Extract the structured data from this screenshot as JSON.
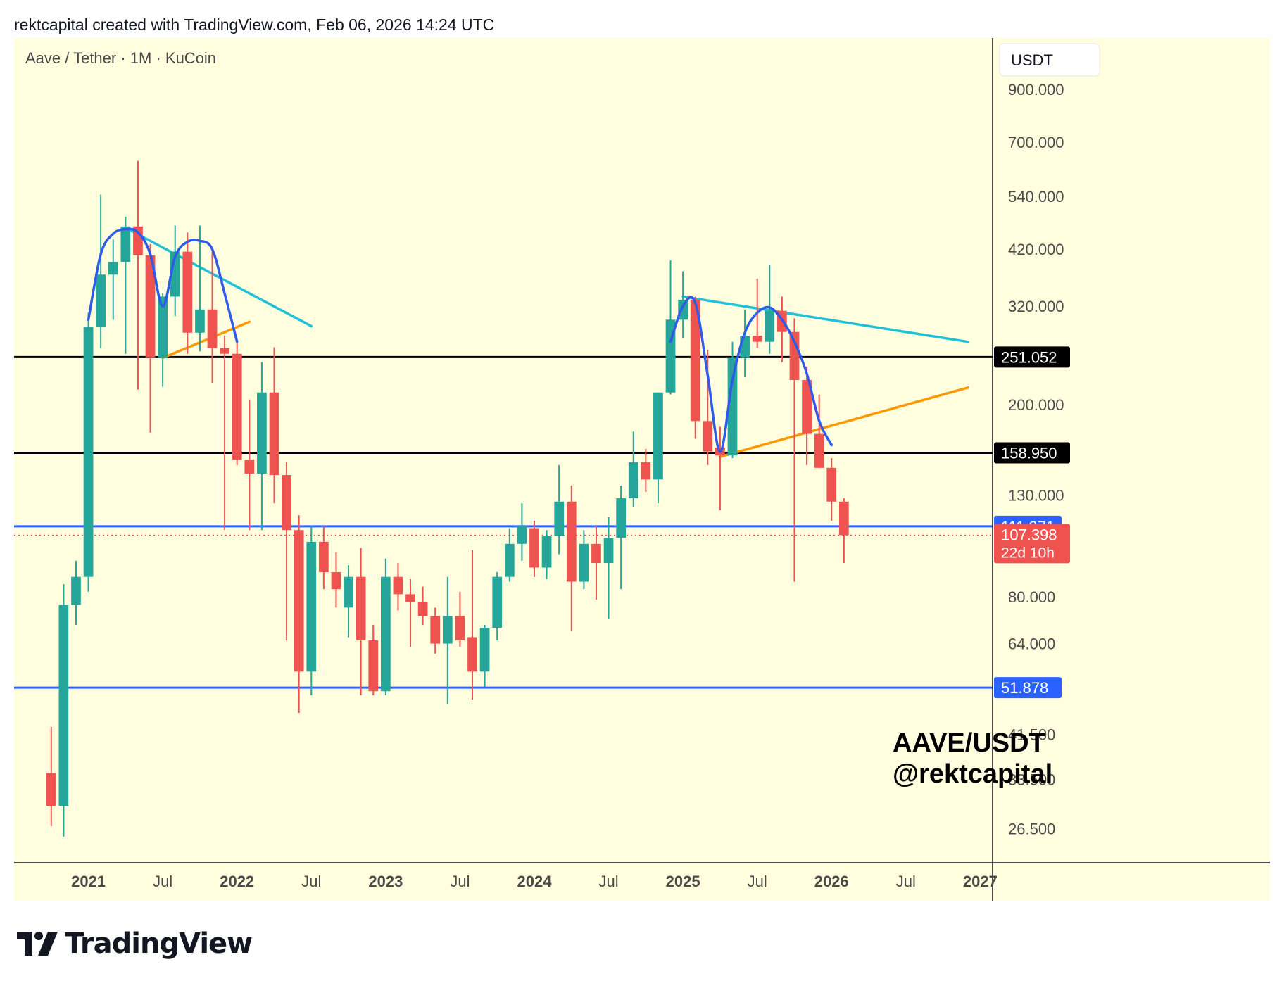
{
  "header": {
    "caption": "rektcapital created with TradingView.com, Feb 06, 2026 14:24 UTC"
  },
  "footer": {
    "brand": "TradingView"
  },
  "colors": {
    "background": "#ffffe0",
    "up": "#26a69a",
    "down": "#ef5350",
    "support_line": "#2962ff",
    "horizontal_level": "#000000",
    "cyan_trendline": "#22c1d8",
    "orange_trendline": "#ff9800",
    "pattern_curve": "#2e5be8"
  },
  "chart_data": {
    "type": "candlestick",
    "symbol_label": "Aave / Tether · 1M · KuCoin",
    "currency": "USDT",
    "y_scale": "log",
    "y_range": [
      22.5,
      1150
    ],
    "y_ticks": [
      "900.000",
      "700.000",
      "540.000",
      "420.000",
      "320.000",
      "200.000",
      "130.000",
      "80.000",
      "64.000",
      "41.500",
      "33.500",
      "26.500"
    ],
    "x_ticks": [
      "2021",
      "Jul",
      "2022",
      "Jul",
      "2023",
      "Jul",
      "2024",
      "Jul",
      "2025",
      "Jul",
      "2026",
      "Jul",
      "2027"
    ],
    "x_tick_dates": [
      "2021-01",
      "2021-07",
      "2022-01",
      "2022-07",
      "2023-01",
      "2023-07",
      "2024-01",
      "2024-07",
      "2025-01",
      "2025-07",
      "2026-01",
      "2026-07",
      "2027-01"
    ],
    "x_range": [
      "2020-07",
      "2027-02"
    ],
    "candles": [
      {
        "date": "2020-10",
        "o": 34.5,
        "h": 43,
        "l": 26.8,
        "c": 29.5
      },
      {
        "date": "2020-11",
        "o": 29.5,
        "h": 85,
        "l": 25.5,
        "c": 77
      },
      {
        "date": "2020-12",
        "o": 77,
        "h": 95,
        "l": 70,
        "c": 88
      },
      {
        "date": "2021-01",
        "o": 88,
        "h": 310,
        "l": 82,
        "c": 290
      },
      {
        "date": "2021-02",
        "o": 290,
        "h": 545,
        "l": 262,
        "c": 372
      },
      {
        "date": "2021-03",
        "o": 372,
        "h": 440,
        "l": 300,
        "c": 395
      },
      {
        "date": "2021-04",
        "o": 395,
        "h": 490,
        "l": 255,
        "c": 468
      },
      {
        "date": "2021-05",
        "o": 468,
        "h": 640,
        "l": 215,
        "c": 408
      },
      {
        "date": "2021-06",
        "o": 408,
        "h": 430,
        "l": 175,
        "c": 250
      },
      {
        "date": "2021-07",
        "o": 250,
        "h": 340,
        "l": 218,
        "c": 335
      },
      {
        "date": "2021-08",
        "o": 335,
        "h": 470,
        "l": 305,
        "c": 415
      },
      {
        "date": "2021-09",
        "o": 415,
        "h": 455,
        "l": 255,
        "c": 282
      },
      {
        "date": "2021-10",
        "o": 282,
        "h": 470,
        "l": 258,
        "c": 315
      },
      {
        "date": "2021-11",
        "o": 315,
        "h": 415,
        "l": 222,
        "c": 262
      },
      {
        "date": "2021-12",
        "o": 262,
        "h": 278,
        "l": 110,
        "c": 255
      },
      {
        "date": "2022-01",
        "o": 255,
        "h": 270,
        "l": 150,
        "c": 154
      },
      {
        "date": "2022-02",
        "o": 154,
        "h": 205,
        "l": 110,
        "c": 144
      },
      {
        "date": "2022-03",
        "o": 144,
        "h": 245,
        "l": 110,
        "c": 212
      },
      {
        "date": "2022-04",
        "o": 212,
        "h": 263,
        "l": 125,
        "c": 143
      },
      {
        "date": "2022-05",
        "o": 143,
        "h": 152,
        "l": 65,
        "c": 110
      },
      {
        "date": "2022-06",
        "o": 110,
        "h": 118,
        "l": 46,
        "c": 56
      },
      {
        "date": "2022-07",
        "o": 56,
        "h": 112,
        "l": 50,
        "c": 104
      },
      {
        "date": "2022-08",
        "o": 104,
        "h": 112,
        "l": 83,
        "c": 90
      },
      {
        "date": "2022-09",
        "o": 90,
        "h": 99,
        "l": 76,
        "c": 83
      },
      {
        "date": "2022-10",
        "o": 76,
        "h": 93,
        "l": 66,
        "c": 88
      },
      {
        "date": "2022-11",
        "o": 88,
        "h": 101,
        "l": 50,
        "c": 65
      },
      {
        "date": "2022-12",
        "o": 65,
        "h": 70,
        "l": 50,
        "c": 51
      },
      {
        "date": "2023-01",
        "o": 51,
        "h": 96,
        "l": 50,
        "c": 88
      },
      {
        "date": "2023-02",
        "o": 88,
        "h": 94,
        "l": 75,
        "c": 81
      },
      {
        "date": "2023-03",
        "o": 81,
        "h": 87,
        "l": 63,
        "c": 78
      },
      {
        "date": "2023-04",
        "o": 78,
        "h": 84,
        "l": 70,
        "c": 73
      },
      {
        "date": "2023-05",
        "o": 73,
        "h": 76,
        "l": 61,
        "c": 64
      },
      {
        "date": "2023-06",
        "o": 64,
        "h": 88,
        "l": 48,
        "c": 73
      },
      {
        "date": "2023-07",
        "o": 73,
        "h": 82,
        "l": 63,
        "c": 65
      },
      {
        "date": "2023-08",
        "o": 66,
        "h": 100,
        "l": 49,
        "c": 56
      },
      {
        "date": "2023-09",
        "o": 56,
        "h": 70,
        "l": 52,
        "c": 69
      },
      {
        "date": "2023-10",
        "o": 69,
        "h": 90,
        "l": 65,
        "c": 88
      },
      {
        "date": "2023-11",
        "o": 88,
        "h": 111,
        "l": 86,
        "c": 103
      },
      {
        "date": "2023-12",
        "o": 103,
        "h": 125,
        "l": 95,
        "c": 112
      },
      {
        "date": "2024-01",
        "o": 111,
        "h": 115,
        "l": 88,
        "c": 92
      },
      {
        "date": "2024-02",
        "o": 92,
        "h": 110,
        "l": 87,
        "c": 107
      },
      {
        "date": "2024-03",
        "o": 107,
        "h": 150,
        "l": 98,
        "c": 126
      },
      {
        "date": "2024-04",
        "o": 126,
        "h": 136,
        "l": 68,
        "c": 86
      },
      {
        "date": "2024-05",
        "o": 86,
        "h": 110,
        "l": 83,
        "c": 103
      },
      {
        "date": "2024-06",
        "o": 103,
        "h": 112,
        "l": 79,
        "c": 94
      },
      {
        "date": "2024-07",
        "o": 94,
        "h": 117,
        "l": 72,
        "c": 106
      },
      {
        "date": "2024-08",
        "o": 106,
        "h": 136,
        "l": 83,
        "c": 128
      },
      {
        "date": "2024-09",
        "o": 128,
        "h": 176,
        "l": 123,
        "c": 152
      },
      {
        "date": "2024-10",
        "o": 152,
        "h": 162,
        "l": 132,
        "c": 140
      },
      {
        "date": "2024-11",
        "o": 140,
        "h": 212,
        "l": 125,
        "c": 212
      },
      {
        "date": "2024-12",
        "o": 212,
        "h": 398,
        "l": 210,
        "c": 300
      },
      {
        "date": "2025-01",
        "o": 300,
        "h": 378,
        "l": 275,
        "c": 330
      },
      {
        "date": "2025-02",
        "o": 330,
        "h": 335,
        "l": 170,
        "c": 185
      },
      {
        "date": "2025-03",
        "o": 185,
        "h": 260,
        "l": 150,
        "c": 160
      },
      {
        "date": "2025-04",
        "o": 163,
        "h": 180,
        "l": 121,
        "c": 157
      },
      {
        "date": "2025-05",
        "o": 157,
        "h": 270,
        "l": 155,
        "c": 250
      },
      {
        "date": "2025-06",
        "o": 250,
        "h": 315,
        "l": 228,
        "c": 278
      },
      {
        "date": "2025-07",
        "o": 278,
        "h": 365,
        "l": 262,
        "c": 270
      },
      {
        "date": "2025-08",
        "o": 270,
        "h": 390,
        "l": 255,
        "c": 313
      },
      {
        "date": "2025-09",
        "o": 313,
        "h": 335,
        "l": 245,
        "c": 283
      },
      {
        "date": "2025-10",
        "o": 283,
        "h": 302,
        "l": 86,
        "c": 225
      },
      {
        "date": "2025-11",
        "o": 225,
        "h": 240,
        "l": 150,
        "c": 174
      },
      {
        "date": "2025-12",
        "o": 174,
        "h": 210,
        "l": 148,
        "c": 148
      },
      {
        "date": "2026-01",
        "o": 148,
        "h": 155,
        "l": 115,
        "c": 126
      },
      {
        "date": "2026-02",
        "o": 126,
        "h": 128,
        "l": 94,
        "c": 107.398
      }
    ],
    "horizontal_levels": [
      {
        "value": 251.052,
        "label": "251.052",
        "style": "black"
      },
      {
        "value": 158.95,
        "label": "158.950",
        "style": "black"
      },
      {
        "value": 111.971,
        "label": "111.971",
        "style": "blue"
      },
      {
        "value": 51.878,
        "label": "51.878",
        "style": "blue"
      }
    ],
    "current_price": {
      "value": 107.398,
      "label": "107.398",
      "countdown": "22d 10h"
    },
    "trendlines": [
      {
        "style": "cyan",
        "from": {
          "date": "2021-04",
          "value": 465
        },
        "to": {
          "date": "2022-07",
          "value": 291
        }
      },
      {
        "style": "orange",
        "from": {
          "date": "2021-07",
          "value": 250
        },
        "to": {
          "date": "2022-02",
          "value": 297
        }
      },
      {
        "style": "cyan",
        "from": {
          "date": "2025-01",
          "value": 335
        },
        "to": {
          "date": "2026-12",
          "value": 270
        }
      },
      {
        "style": "orange",
        "from": {
          "date": "2025-04",
          "value": 156
        },
        "to": {
          "date": "2026-12",
          "value": 217
        }
      }
    ],
    "pattern_curves": [
      {
        "points": [
          [
            "2021-01",
            300
          ],
          [
            "2021-02",
            410
          ],
          [
            "2021-03",
            452
          ],
          [
            "2021-04",
            462
          ],
          [
            "2021-05",
            455
          ],
          [
            "2021-06",
            410
          ],
          [
            "2021-07",
            320
          ],
          [
            "2021-08",
            405
          ],
          [
            "2021-09",
            435
          ],
          [
            "2021-10",
            437
          ],
          [
            "2021-11",
            420
          ],
          [
            "2021-12",
            340
          ],
          [
            "2022-01",
            270
          ]
        ]
      },
      {
        "points": [
          [
            "2024-12",
            270
          ],
          [
            "2025-01",
            320
          ],
          [
            "2025-02",
            325
          ],
          [
            "2025-03",
            230
          ],
          [
            "2025-04",
            160
          ],
          [
            "2025-05",
            225
          ],
          [
            "2025-06",
            282
          ],
          [
            "2025-07",
            310
          ],
          [
            "2025-08",
            318
          ],
          [
            "2025-09",
            300
          ],
          [
            "2025-10",
            270
          ],
          [
            "2025-11",
            232
          ],
          [
            "2025-12",
            185
          ],
          [
            "2026-01",
            165
          ]
        ]
      }
    ],
    "annotation": {
      "line1": "AAVE/USDT",
      "line2": "@rektcapital"
    }
  }
}
